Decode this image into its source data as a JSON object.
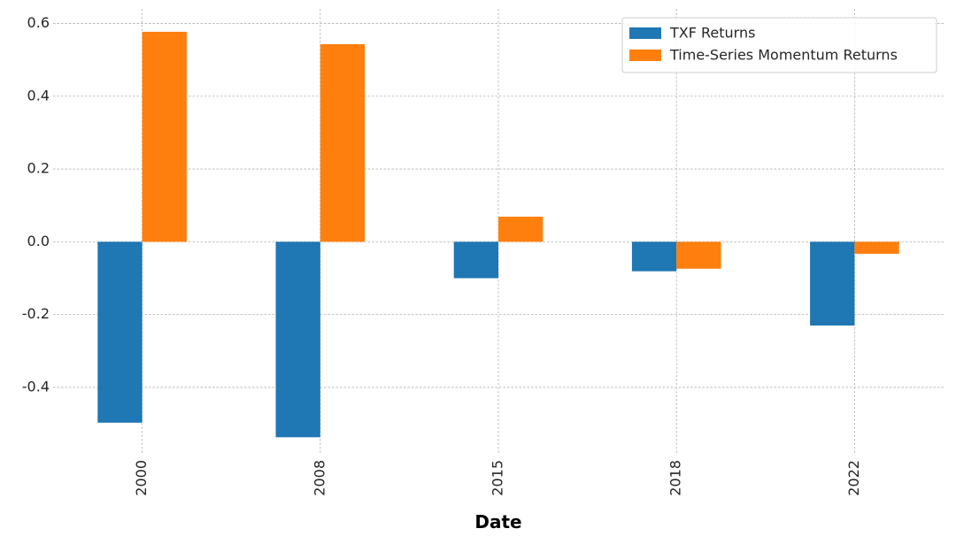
{
  "chart_data": {
    "type": "bar",
    "categories": [
      "2000",
      "2008",
      "2015",
      "2018",
      "2022"
    ],
    "series": [
      {
        "name": "TXF Returns",
        "color": "#1f77b4",
        "values": [
          -0.497,
          -0.537,
          -0.1,
          -0.081,
          -0.23
        ]
      },
      {
        "name": "Time-Series Momentum Returns",
        "color": "#ff7f0e",
        "values": [
          0.577,
          0.543,
          0.069,
          -0.074,
          -0.033
        ]
      }
    ],
    "title": "",
    "xlabel": "Date",
    "ylabel": "",
    "ylim": [
      -0.58,
      0.64
    ],
    "yticks": [
      -0.4,
      -0.2,
      0.0,
      0.2,
      0.4,
      0.6
    ],
    "ytick_labels": [
      "-0.4",
      "-0.2",
      "0.0",
      "0.2",
      "0.4",
      "0.6"
    ],
    "grid": true,
    "legend_position": "top-right"
  }
}
